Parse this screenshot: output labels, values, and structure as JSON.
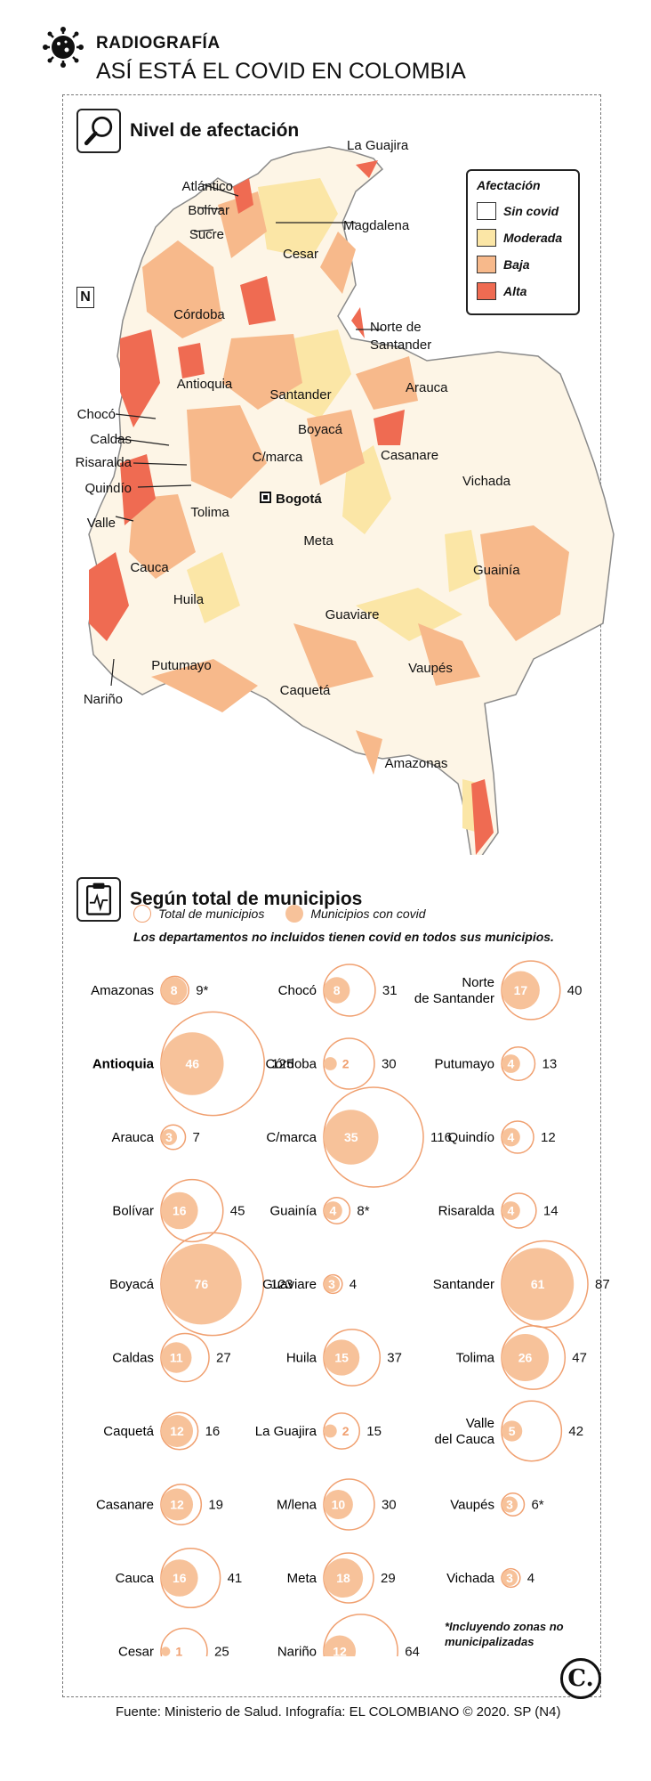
{
  "header": {
    "kicker": "RADIOGRAFÍA",
    "title": "ASÍ ESTÁ EL COVID EN COLOMBIA"
  },
  "map": {
    "section_title": "Nivel de afectación",
    "north": "N",
    "legend": {
      "title": "Afectación",
      "items": [
        {
          "label": "Sin covid",
          "color": "#ffffff"
        },
        {
          "label": "Moderada",
          "color": "#fbe6a6"
        },
        {
          "label": "Baja",
          "color": "#f7b98b"
        },
        {
          "label": "Alta",
          "color": "#ef6b52"
        }
      ]
    },
    "capital": "Bogotá",
    "labels": [
      "La Guajira",
      "Atlántico",
      "Bolívar",
      "Sucre",
      "Magdalena",
      "Cesar",
      "Córdoba",
      "Norte de Santander",
      "Antioquia",
      "Santander",
      "Arauca",
      "Boyacá",
      "Chocó",
      "Caldas",
      "Risaralda",
      "Quindío",
      "C/marca",
      "Casanare",
      "Vichada",
      "Valle",
      "Tolima",
      "Meta",
      "Cauca",
      "Guainía",
      "Huila",
      "Guaviare",
      "Putumayo",
      "Vaupés",
      "Nariño",
      "Caquetá",
      "Amazonas"
    ]
  },
  "chart_data": {
    "type": "bubble",
    "title": "Según total de municipios",
    "legend": [
      "Total de municipios",
      "Municipios con covid"
    ],
    "note": "Los departamentos no incluidos tienen covid en todos sus municipios.",
    "footnote": "*Incluyendo zonas no municipalizadas",
    "colors": {
      "total_stroke": "#f0a070",
      "covid_fill": "#f7c29a"
    },
    "series": [
      {
        "name": "Amazonas",
        "covid": 8,
        "total": "9*"
      },
      {
        "name": "Antioquia",
        "covid": 46,
        "total": "125"
      },
      {
        "name": "Arauca",
        "covid": 3,
        "total": "7"
      },
      {
        "name": "Bolívar",
        "covid": 16,
        "total": "45"
      },
      {
        "name": "Boyacá",
        "covid": 76,
        "total": "123"
      },
      {
        "name": "Caldas",
        "covid": 11,
        "total": "27"
      },
      {
        "name": "Caquetá",
        "covid": 12,
        "total": "16"
      },
      {
        "name": "Casanare",
        "covid": 12,
        "total": "19"
      },
      {
        "name": "Cauca",
        "covid": 16,
        "total": "41"
      },
      {
        "name": "Cesar",
        "covid": 1,
        "total": "25"
      },
      {
        "name": "Chocó",
        "covid": 8,
        "total": "31"
      },
      {
        "name": "Córdoba",
        "covid": 2,
        "total": "30"
      },
      {
        "name": "C/marca",
        "covid": 35,
        "total": "116"
      },
      {
        "name": "Guainía",
        "covid": 4,
        "total": "8*"
      },
      {
        "name": "Guaviare",
        "covid": 3,
        "total": "4"
      },
      {
        "name": "Huila",
        "covid": 15,
        "total": "37"
      },
      {
        "name": "La Guajira",
        "covid": 2,
        "total": "15"
      },
      {
        "name": "M/lena",
        "covid": 10,
        "total": "30"
      },
      {
        "name": "Meta",
        "covid": 18,
        "total": "29"
      },
      {
        "name": "Nariño",
        "covid": 12,
        "total": "64"
      },
      {
        "name": "Norte de Santander",
        "covid": 17,
        "total": "40"
      },
      {
        "name": "Putumayo",
        "covid": 4,
        "total": "13"
      },
      {
        "name": "Quindío",
        "covid": 4,
        "total": "12"
      },
      {
        "name": "Risaralda",
        "covid": 4,
        "total": "14"
      },
      {
        "name": "Santander",
        "covid": 61,
        "total": "87"
      },
      {
        "name": "Tolima",
        "covid": 26,
        "total": "47"
      },
      {
        "name": "Valle del Cauca",
        "covid": 5,
        "total": "42"
      },
      {
        "name": "Vaupés",
        "covid": 3,
        "total": "6*"
      },
      {
        "name": "Vichada",
        "covid": 3,
        "total": "4"
      }
    ]
  },
  "source": "Fuente: Ministerio de Salud. Infografía: EL COLOMBIANO © 2020. SP (N4)",
  "logo": "C."
}
